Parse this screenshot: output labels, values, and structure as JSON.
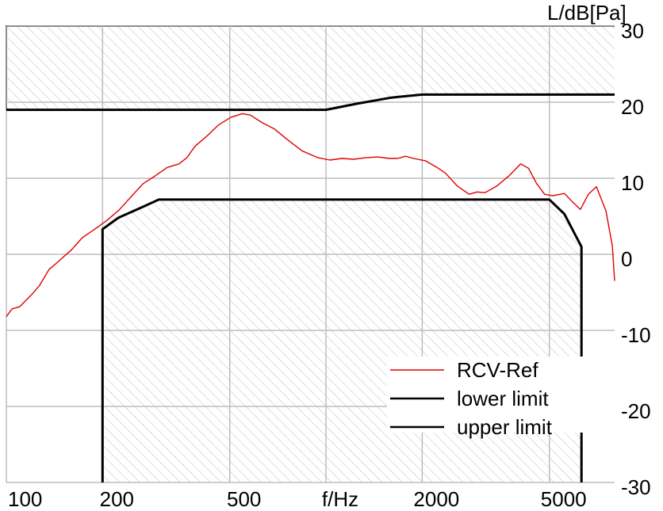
{
  "chart_data": {
    "type": "line",
    "ylabel": "L/dB[Pa]",
    "xscale": "log",
    "xlim": [
      100,
      8000
    ],
    "xticks": [
      100,
      200,
      500,
      {
        "value": 1000,
        "label": "f/Hz"
      },
      2000,
      5000
    ],
    "ylim": [
      -30,
      30
    ],
    "yticks": [
      30,
      20,
      10,
      0,
      -10,
      -20,
      -30
    ],
    "grid": true,
    "legend": "lower right",
    "series": [
      {
        "name": "RCV-Ref",
        "color": "#e00000",
        "x": [
          100,
          104,
          110,
          120,
          127,
          136,
          144,
          160,
          173,
          189,
          207,
          225,
          246,
          268,
          292,
          318,
          347,
          367,
          389,
          423,
          461,
          503,
          548,
          580,
          632,
          689,
          751,
          842,
          944,
          1029,
          1122,
          1222,
          1332,
          1452,
          1581,
          1675,
          1774,
          1879,
          2047,
          2230,
          2362,
          2573,
          2805,
          2971,
          3146,
          3428,
          3736,
          4067,
          4305,
          4560,
          4831,
          5117,
          5572,
          5902,
          6252,
          6622,
          7015,
          7516,
          7870,
          8000
        ],
        "values": [
          -8.2,
          -7.2,
          -6.9,
          -5.3,
          -4.1,
          -2.0,
          -1.1,
          0.6,
          2.2,
          3.3,
          4.5,
          5.8,
          7.6,
          9.3,
          10.3,
          11.4,
          11.9,
          12.7,
          14.2,
          15.5,
          17.0,
          18.0,
          18.5,
          18.3,
          17.3,
          16.5,
          15.2,
          13.6,
          12.7,
          12.4,
          12.6,
          12.5,
          12.7,
          12.8,
          12.6,
          12.6,
          12.9,
          12.6,
          12.3,
          11.4,
          10.7,
          9.0,
          7.9,
          8.2,
          8.1,
          9.0,
          10.3,
          11.9,
          11.3,
          9.3,
          7.9,
          7.7,
          8.0,
          6.9,
          5.9,
          7.9,
          8.9,
          5.7,
          1.1,
          -3.5
        ]
      },
      {
        "name": "lower limit",
        "color": "#000000",
        "x": [
          200,
          200,
          224,
          266,
          300,
          5000,
          5570,
          6300,
          6300
        ],
        "values": [
          -30,
          3.3,
          4.8,
          6.2,
          7.2,
          7.2,
          5.3,
          1.0,
          -30
        ]
      },
      {
        "name": "upper limit",
        "color": "#000000",
        "x": [
          100,
          1000,
          1250,
          1600,
          2000,
          8000
        ],
        "values": [
          19,
          19,
          19.8,
          20.6,
          21,
          21
        ]
      }
    ]
  }
}
